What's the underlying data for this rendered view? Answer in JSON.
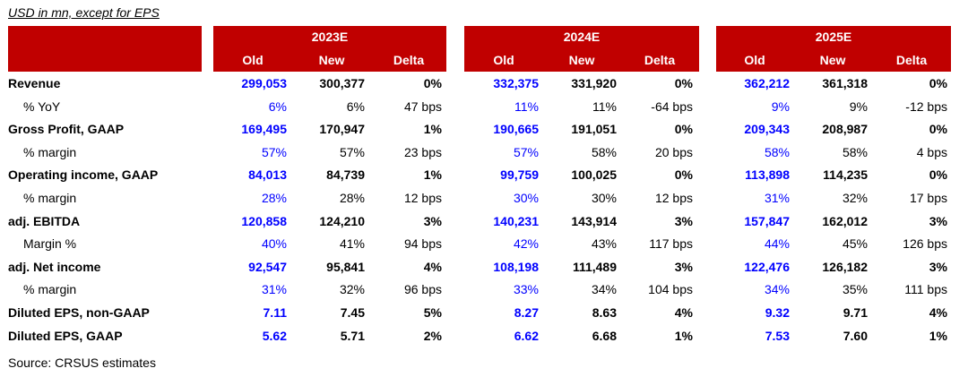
{
  "caption": "USD in mn, except for EPS",
  "years": [
    "2023E",
    "2024E",
    "2025E"
  ],
  "subheaders": [
    "Old",
    "New",
    "Delta"
  ],
  "rows": [
    {
      "label": "Revenue",
      "bold": true,
      "indent": false,
      "values": [
        [
          "299,053",
          "300,377",
          "0%"
        ],
        [
          "332,375",
          "331,920",
          "0%"
        ],
        [
          "362,212",
          "361,318",
          "0%"
        ]
      ]
    },
    {
      "label": "% YoY",
      "bold": false,
      "indent": true,
      "values": [
        [
          "6%",
          "6%",
          "47 bps"
        ],
        [
          "11%",
          "11%",
          "-64 bps"
        ],
        [
          "9%",
          "9%",
          "-12 bps"
        ]
      ]
    },
    {
      "label": "Gross Profit, GAAP",
      "bold": true,
      "indent": false,
      "values": [
        [
          "169,495",
          "170,947",
          "1%"
        ],
        [
          "190,665",
          "191,051",
          "0%"
        ],
        [
          "209,343",
          "208,987",
          "0%"
        ]
      ]
    },
    {
      "label": "% margin",
      "bold": false,
      "indent": true,
      "values": [
        [
          "57%",
          "57%",
          "23 bps"
        ],
        [
          "57%",
          "58%",
          "20 bps"
        ],
        [
          "58%",
          "58%",
          "4 bps"
        ]
      ]
    },
    {
      "label": "Operating income, GAAP",
      "bold": true,
      "indent": false,
      "values": [
        [
          "84,013",
          "84,739",
          "1%"
        ],
        [
          "99,759",
          "100,025",
          "0%"
        ],
        [
          "113,898",
          "114,235",
          "0%"
        ]
      ]
    },
    {
      "label": "% margin",
      "bold": false,
      "indent": true,
      "values": [
        [
          "28%",
          "28%",
          "12 bps"
        ],
        [
          "30%",
          "30%",
          "12 bps"
        ],
        [
          "31%",
          "32%",
          "17 bps"
        ]
      ]
    },
    {
      "label": "adj. EBITDA",
      "bold": true,
      "indent": false,
      "values": [
        [
          "120,858",
          "124,210",
          "3%"
        ],
        [
          "140,231",
          "143,914",
          "3%"
        ],
        [
          "157,847",
          "162,012",
          "3%"
        ]
      ]
    },
    {
      "label": "Margin %",
      "bold": false,
      "indent": true,
      "values": [
        [
          "40%",
          "41%",
          "94 bps"
        ],
        [
          "42%",
          "43%",
          "117 bps"
        ],
        [
          "44%",
          "45%",
          "126 bps"
        ]
      ]
    },
    {
      "label": "adj. Net income",
      "bold": true,
      "indent": false,
      "values": [
        [
          "92,547",
          "95,841",
          "4%"
        ],
        [
          "108,198",
          "111,489",
          "3%"
        ],
        [
          "122,476",
          "126,182",
          "3%"
        ]
      ]
    },
    {
      "label": "% margin",
      "bold": false,
      "indent": true,
      "values": [
        [
          "31%",
          "32%",
          "96 bps"
        ],
        [
          "33%",
          "34%",
          "104 bps"
        ],
        [
          "34%",
          "35%",
          "111 bps"
        ]
      ]
    },
    {
      "label": "Diluted EPS, non-GAAP",
      "bold": true,
      "indent": false,
      "values": [
        [
          "7.11",
          "7.45",
          "5%"
        ],
        [
          "8.27",
          "8.63",
          "4%"
        ],
        [
          "9.32",
          "9.71",
          "4%"
        ]
      ]
    },
    {
      "label": "Diluted EPS, GAAP",
      "bold": true,
      "indent": false,
      "values": [
        [
          "5.62",
          "5.71",
          "2%"
        ],
        [
          "6.62",
          "6.68",
          "1%"
        ],
        [
          "7.53",
          "7.60",
          "1%"
        ]
      ]
    }
  ],
  "footer": "Source: CRSUS estimates",
  "colors": {
    "header_red": "#c00000",
    "old_value_blue": "#0000ff"
  }
}
